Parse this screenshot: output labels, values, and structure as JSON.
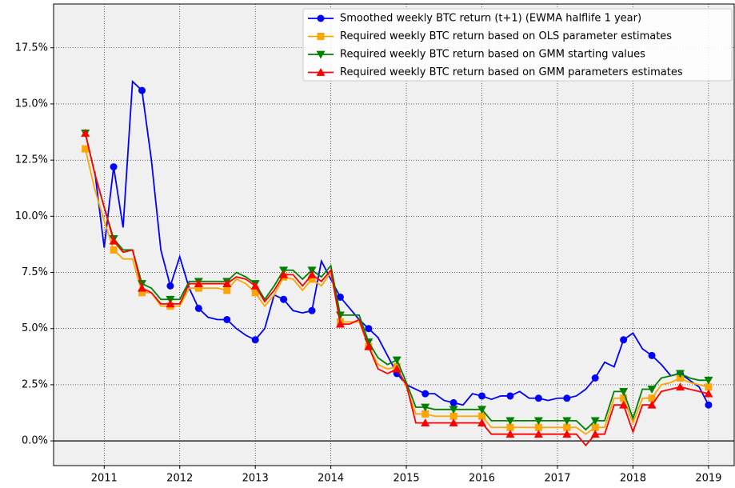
{
  "chart_data": {
    "type": "line",
    "x": [
      2010.75,
      2010.875,
      2011.0,
      2011.125,
      2011.25,
      2011.375,
      2011.5,
      2011.625,
      2011.75,
      2011.875,
      2012.0,
      2012.125,
      2012.25,
      2012.375,
      2012.5,
      2012.625,
      2012.75,
      2012.875,
      2013.0,
      2013.125,
      2013.25,
      2013.375,
      2013.5,
      2013.625,
      2013.75,
      2013.875,
      2014.0,
      2014.125,
      2014.25,
      2014.375,
      2014.5,
      2014.625,
      2014.75,
      2014.875,
      2015.0,
      2015.125,
      2015.25,
      2015.375,
      2015.5,
      2015.625,
      2015.75,
      2015.875,
      2016.0,
      2016.125,
      2016.25,
      2016.375,
      2016.5,
      2016.625,
      2016.75,
      2016.875,
      2017.0,
      2017.125,
      2017.25,
      2017.375,
      2017.5,
      2017.625,
      2017.75,
      2017.875,
      2018.0,
      2018.125,
      2018.25,
      2018.375,
      2018.5,
      2018.625,
      2018.75,
      2018.875,
      2019.0
    ],
    "series": [
      {
        "name": "Smoothed weekly BTC return (t+1) (EWMA halflife 1 year)",
        "color": "#0000ff",
        "marker": "circle",
        "values": [
          null,
          12.0,
          8.6,
          12.2,
          9.5,
          16,
          15.6,
          12.5,
          8.5,
          6.9,
          8.2,
          6.8,
          5.9,
          5.5,
          5.4,
          5.4,
          5.0,
          4.7,
          4.5,
          5.0,
          6.5,
          6.3,
          5.8,
          5.7,
          5.8,
          8.0,
          7.2,
          6.4,
          5.9,
          5.4,
          5.0,
          4.6,
          3.8,
          3.0,
          2.5,
          2.3,
          2.1,
          2.1,
          1.8,
          1.7,
          1.6,
          2.1,
          2.0,
          1.85,
          2.0,
          2.0,
          2.2,
          1.9,
          1.9,
          1.8,
          1.9,
          1.9,
          2.0,
          2.3,
          2.8,
          3.5,
          3.3,
          4.5,
          4.8,
          4.1,
          3.8,
          3.4,
          2.9,
          3.0,
          2.7,
          2.4,
          1.6
        ]
      },
      {
        "name": "Required weekly BTC return based on OLS parameter estimates",
        "color": "#ffa500",
        "marker": "square",
        "values": [
          13.0,
          11.2,
          9.8,
          8.5,
          8.1,
          8.1,
          6.6,
          6.6,
          6.0,
          6.0,
          6.0,
          6.8,
          6.8,
          6.8,
          6.8,
          6.7,
          7.2,
          7.0,
          6.6,
          6.0,
          6.5,
          7.3,
          7.2,
          6.7,
          7.2,
          6.9,
          7.5,
          5.3,
          5.3,
          5.3,
          4.2,
          3.4,
          3.2,
          3.3,
          2.4,
          1.2,
          1.2,
          1.1,
          1.1,
          1.1,
          1.1,
          1.1,
          1.1,
          0.6,
          0.6,
          0.6,
          0.6,
          0.6,
          0.6,
          0.6,
          0.6,
          0.6,
          0.6,
          0.3,
          0.6,
          0.6,
          1.9,
          1.9,
          0.8,
          1.9,
          1.9,
          2.5,
          2.6,
          2.8,
          2.6,
          2.5,
          2.4
        ]
      },
      {
        "name": "Required weekly BTC return based on GMM starting values",
        "color": "#008000",
        "marker": "triangle-down",
        "values": [
          13.7,
          11.9,
          10.4,
          9.0,
          8.5,
          8.5,
          7.0,
          6.8,
          6.3,
          6.3,
          6.3,
          7.1,
          7.1,
          7.1,
          7.1,
          7.1,
          7.5,
          7.3,
          7.0,
          6.3,
          6.9,
          7.6,
          7.6,
          7.2,
          7.6,
          7.3,
          7.8,
          5.6,
          5.6,
          5.6,
          4.4,
          3.7,
          3.4,
          3.6,
          2.6,
          1.5,
          1.5,
          1.4,
          1.4,
          1.4,
          1.4,
          1.4,
          1.4,
          0.9,
          0.9,
          0.9,
          0.9,
          0.9,
          0.9,
          0.9,
          0.9,
          0.9,
          0.9,
          0.5,
          0.9,
          0.9,
          2.2,
          2.2,
          1.0,
          2.3,
          2.3,
          2.8,
          2.9,
          3.0,
          2.8,
          2.7,
          2.7
        ]
      },
      {
        "name": "Required weekly BTC return based on GMM parameters estimates",
        "color": "#ff0000",
        "marker": "triangle-up",
        "values": [
          13.7,
          11.9,
          10.4,
          8.9,
          8.4,
          8.5,
          6.8,
          6.6,
          6.1,
          6.1,
          6.1,
          7.0,
          7.0,
          7.0,
          7.0,
          7.0,
          7.3,
          7.2,
          6.9,
          6.2,
          6.7,
          7.4,
          7.4,
          6.9,
          7.4,
          7.1,
          7.6,
          5.2,
          5.2,
          5.4,
          4.2,
          3.2,
          3.0,
          3.2,
          2.5,
          0.8,
          0.8,
          0.8,
          0.8,
          0.8,
          0.8,
          0.8,
          0.8,
          0.3,
          0.3,
          0.3,
          0.3,
          0.3,
          0.3,
          0.3,
          0.3,
          0.3,
          0.3,
          -0.2,
          0.3,
          0.3,
          1.6,
          1.6,
          0.4,
          1.6,
          1.6,
          2.2,
          2.3,
          2.4,
          2.3,
          2.2,
          2.1
        ]
      }
    ],
    "markevery": 3,
    "xlim": [
      2010.33,
      2019.34
    ],
    "xticks": [
      2011,
      2012,
      2013,
      2014,
      2015,
      2016,
      2017,
      2018,
      2019
    ],
    "ylim": [
      -1.1,
      19.45
    ],
    "yticks": [
      {
        "value": 0,
        "label": "0.0%"
      },
      {
        "value": 2.5,
        "label": "2.5%"
      },
      {
        "value": 5,
        "label": "5.0%"
      },
      {
        "value": 7.5,
        "label": "7.5%"
      },
      {
        "value": 10,
        "label": "10.0%"
      },
      {
        "value": 12.5,
        "label": "12.5%"
      },
      {
        "value": 15,
        "label": "15.0%"
      },
      {
        "value": 17.5,
        "label": "17.5%"
      }
    ],
    "hline": 0,
    "grid": true,
    "legend": "upper right"
  }
}
